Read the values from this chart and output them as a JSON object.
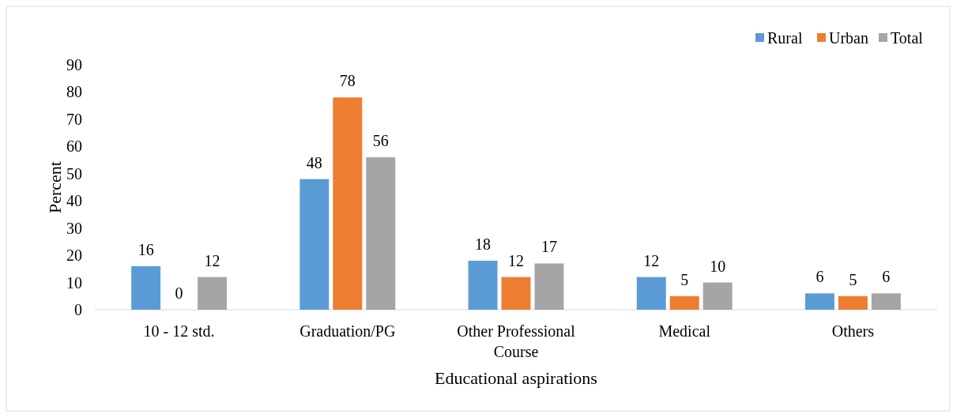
{
  "chart_data": {
    "type": "bar",
    "xlabel": "Educational aspirations",
    "ylabel": "Percent",
    "categories": [
      "10 - 12 std.",
      "Graduation/PG",
      "Other Professional Course",
      "Medical",
      "Others"
    ],
    "series": [
      {
        "name": "Rural",
        "color": "#5b9bd5",
        "values": [
          16,
          48,
          18,
          12,
          6
        ]
      },
      {
        "name": "Urban",
        "color": "#ed7d31",
        "values": [
          0,
          78,
          12,
          5,
          5
        ]
      },
      {
        "name": "Total",
        "color": "#a5a5a5",
        "values": [
          12,
          56,
          17,
          10,
          6
        ]
      }
    ],
    "ylim": [
      0,
      90
    ],
    "yticks": [
      0,
      10,
      20,
      30,
      40,
      50,
      60,
      70,
      80,
      90
    ],
    "grid": false,
    "legend": "top right",
    "data_labels": true
  }
}
